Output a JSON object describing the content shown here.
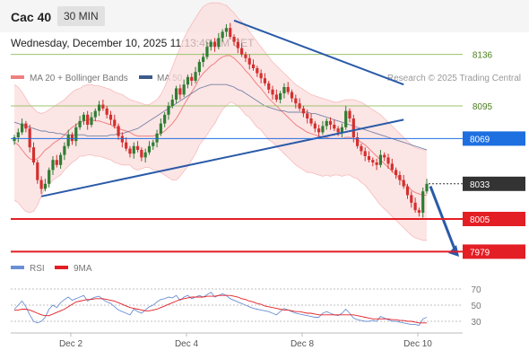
{
  "header": {
    "title": "Cac 40",
    "timeframe": "30 MIN"
  },
  "datetime": "Wednesday, December 10, 2025 11:13:49 AM CET",
  "colors": {
    "bollinger": "#f08080",
    "ma50": "#3d5a8c",
    "support_line": "#2a5aa8",
    "last_price_box": "#333333",
    "resistance": "#9cc36b",
    "red_level": "#e31e24",
    "rsi_line": "#6b8fd4",
    "rsi_ma": "#e31e24",
    "arrow": "#2a5aa8",
    "candle": "#2f7d32",
    "candle_down": "#d32f2f"
  },
  "chart_data": [
    {
      "type": "candlestick",
      "legend": [
        {
          "label": "MA 20 + Bollinger Bands",
          "color": "#f08080"
        },
        {
          "label": "MA 50",
          "color": "#3d5a8c"
        }
      ],
      "watermark": "Research © 2025 Trading Central",
      "x_ticks": [
        "Dec 2",
        "Dec 4",
        "Dec 8",
        "Dec 10"
      ],
      "levels": [
        {
          "value": "8136",
          "style": "green"
        },
        {
          "value": "8095",
          "style": "green"
        },
        {
          "value": "8069",
          "style": "blue"
        },
        {
          "value": "8033",
          "style": "dark",
          "note": "last price"
        },
        {
          "value": "8005",
          "style": "red"
        },
        {
          "value": "7979",
          "style": "red"
        }
      ],
      "trendlines": [
        {
          "from": [
            "Dec 5",
            8163
          ],
          "to": [
            "Dec 9",
            8112
          ]
        },
        {
          "from": [
            "Dec 1",
            8023
          ],
          "to": [
            "Dec 9",
            8084
          ]
        }
      ],
      "closes": [
        8070,
        8074,
        8081,
        8077,
        8062,
        8050,
        8036,
        8029,
        8033,
        8044,
        8052,
        8048,
        8056,
        8063,
        8072,
        8067,
        8078,
        8083,
        8088,
        8080,
        8086,
        8091,
        8096,
        8093,
        8088,
        8084,
        8079,
        8071,
        8066,
        8061,
        8057,
        8063,
        8060,
        8054,
        8058,
        8063,
        8066,
        8073,
        8081,
        8088,
        8095,
        8100,
        8109,
        8104,
        8112,
        8118,
        8115,
        8122,
        8130,
        8134,
        8142,
        8146,
        8142,
        8149,
        8154,
        8157,
        8150,
        8146,
        8141,
        8136,
        8133,
        8128,
        8125,
        8121,
        8117,
        8113,
        8108,
        8104,
        8100,
        8105,
        8110,
        8106,
        8101,
        8097,
        8093,
        8089,
        8085,
        8081,
        8077,
        8074,
        8079,
        8083,
        8080,
        8077,
        8074,
        8078,
        8091,
        8085,
        8070,
        8063,
        8059,
        8055,
        8052,
        8050,
        8048,
        8056,
        8054,
        8049,
        8044,
        8040,
        8036,
        8031,
        8024,
        8018,
        8012,
        8010,
        8027,
        8033
      ],
      "ma20": [
        8066,
        8064,
        8060,
        8056,
        8053,
        8052,
        8053,
        8056,
        8060,
        8062,
        8065,
        8067,
        8069,
        8072,
        8075,
        8078,
        8080,
        8082,
        8083,
        8084,
        8084,
        8083,
        8083,
        8082,
        8081,
        8080,
        8078,
        8077,
        8076,
        8075,
        8074,
        8072,
        8071,
        8071,
        8071,
        8071,
        8071,
        8072,
        8073,
        8075,
        8078,
        8081,
        8085,
        8090,
        8096,
        8101,
        8106,
        8111,
        8117,
        8121,
        8124,
        8127,
        8129,
        8132,
        8134,
        8135,
        8135,
        8133,
        8130,
        8127,
        8123,
        8120,
        8116,
        8112,
        8109,
        8105,
        8101,
        8098,
        8095,
        8092,
        8089,
        8086,
        8083,
        8080,
        8078,
        8076,
        8074,
        8073,
        8072,
        8071,
        8070,
        8070,
        8069,
        8069,
        8069,
        8069,
        8070,
        8070,
        8069,
        8068,
        8066,
        8064,
        8061,
        8058,
        8055,
        8052,
        8049,
        8046,
        8043,
        8040,
        8037,
        8034,
        8031,
        8028,
        8026,
        8025,
        8024,
        8024
      ],
      "ma50": [
        8082,
        8081,
        8080,
        8079,
        8078,
        8077,
        8076,
        8075,
        8075,
        8074,
        8074,
        8073,
        8073,
        8072,
        8072,
        8072,
        8072,
        8072,
        8072,
        8071,
        8071,
        8071,
        8071,
        8071,
        8071,
        8072,
        8072,
        8073,
        8073,
        8074,
        8075,
        8076,
        8077,
        8079,
        8081,
        8083,
        8085,
        8087,
        8089,
        8091,
        8093,
        8095,
        8097,
        8099,
        8101,
        8103,
        8105,
        8107,
        8109,
        8110,
        8111,
        8112,
        8112,
        8112,
        8112,
        8112,
        8111,
        8110,
        8108,
        8107,
        8105,
        8103,
        8101,
        8099,
        8097,
        8095,
        8094,
        8093,
        8092,
        8091,
        8091,
        8090,
        8090,
        8090,
        8090,
        8090,
        8090,
        8089,
        8089,
        8088,
        8087,
        8086,
        8085,
        8084,
        8083,
        8082,
        8081,
        8080,
        8079,
        8078,
        8077,
        8076,
        8075,
        8074,
        8073,
        8072,
        8071,
        8070,
        8069,
        8068,
        8067,
        8066,
        8065,
        8064,
        8063,
        8062,
        8061,
        8060
      ],
      "bb_upper": [
        8112,
        8110,
        8106,
        8101,
        8096,
        8093,
        8090,
        8089,
        8090,
        8092,
        8094,
        8096,
        8098,
        8100,
        8103,
        8106,
        8108,
        8109,
        8111,
        8112,
        8112,
        8111,
        8111,
        8110,
        8109,
        8108,
        8106,
        8105,
        8104,
        8102,
        8100,
        8099,
        8098,
        8097,
        8096,
        8096,
        8098,
        8100,
        8104,
        8110,
        8118,
        8126,
        8134,
        8141,
        8149,
        8155,
        8160,
        8165,
        8170,
        8174,
        8176,
        8177,
        8177,
        8177,
        8176,
        8175,
        8172,
        8169,
        8165,
        8162,
        8158,
        8154,
        8150,
        8146,
        8142,
        8138,
        8134,
        8130,
        8127,
        8124,
        8121,
        8118,
        8115,
        8112,
        8110,
        8108,
        8106,
        8104,
        8103,
        8102,
        8101,
        8100,
        8099,
        8098,
        8098,
        8099,
        8100,
        8100,
        8100,
        8099,
        8098,
        8096,
        8094,
        8092,
        8090,
        8088,
        8085,
        8082,
        8079,
        8076,
        8073,
        8070,
        8067,
        8064,
        8062,
        8061,
        8060,
        8060
      ],
      "bb_lower": [
        8020,
        8018,
        8014,
        8011,
        8010,
        8011,
        8016,
        8023,
        8030,
        8032,
        8036,
        8038,
        8040,
        8044,
        8047,
        8050,
        8052,
        8055,
        8055,
        8056,
        8056,
        8055,
        8055,
        8054,
        8053,
        8052,
        8050,
        8049,
        8048,
        8048,
        8048,
        8045,
        8044,
        8045,
        8046,
        8046,
        8044,
        8044,
        8042,
        8040,
        8038,
        8036,
        8036,
        8039,
        8043,
        8047,
        8052,
        8057,
        8064,
        8068,
        8072,
        8077,
        8081,
        8087,
        8092,
        8095,
        8098,
        8097,
        8095,
        8092,
        8088,
        8086,
        8082,
        8078,
        8076,
        8072,
        8068,
        8066,
        8063,
        8060,
        8057,
        8054,
        8051,
        8048,
        8046,
        8044,
        8042,
        8042,
        8041,
        8040,
        8039,
        8040,
        8039,
        8040,
        8040,
        8039,
        8040,
        8040,
        8038,
        8037,
        8034,
        8032,
        8028,
        8024,
        8020,
        8016,
        8013,
        8010,
        8007,
        8004,
        8001,
        7998,
        7995,
        7992,
        7990,
        7989,
        7988,
        7988
      ]
    },
    {
      "type": "line",
      "legend": [
        {
          "label": "RSI",
          "color": "#6b8fd4"
        },
        {
          "label": "9MA",
          "color": "#e31e24"
        }
      ],
      "y_ticks": [
        "70",
        "50",
        "30"
      ],
      "rsi": [
        45,
        50,
        55,
        48,
        38,
        30,
        28,
        30,
        35,
        45,
        50,
        47,
        53,
        57,
        60,
        56,
        58,
        60,
        62,
        55,
        58,
        60,
        61,
        57,
        54,
        52,
        48,
        44,
        42,
        40,
        38,
        45,
        42,
        40,
        44,
        48,
        50,
        54,
        57,
        58,
        60,
        59,
        62,
        56,
        60,
        62,
        58,
        60,
        62,
        60,
        63,
        66,
        60,
        62,
        64,
        62,
        58,
        56,
        54,
        52,
        50,
        48,
        46,
        45,
        44,
        43,
        42,
        40,
        38,
        42,
        46,
        44,
        42,
        40,
        39,
        38,
        37,
        36,
        35,
        35,
        40,
        42,
        40,
        38,
        37,
        40,
        45,
        40,
        34,
        32,
        31,
        30,
        30,
        31,
        30,
        36,
        34,
        32,
        30,
        30,
        29,
        28,
        27,
        26,
        26,
        25,
        33,
        35
      ],
      "rsi_ma": [
        44,
        44,
        45,
        45,
        44,
        42,
        40,
        38,
        37,
        37,
        39,
        41,
        43,
        45,
        48,
        51,
        54,
        55,
        56,
        57,
        57,
        58,
        58,
        58,
        57,
        56,
        55,
        53,
        51,
        49,
        47,
        46,
        45,
        44,
        43,
        43,
        44,
        45,
        47,
        49,
        51,
        53,
        55,
        57,
        58,
        59,
        60,
        60,
        60,
        60,
        61,
        61,
        61,
        62,
        62,
        62,
        62,
        61,
        60,
        58,
        57,
        55,
        54,
        52,
        51,
        49,
        48,
        47,
        46,
        45,
        44,
        44,
        43,
        42,
        42,
        41,
        40,
        40,
        39,
        38,
        38,
        38,
        38,
        38,
        38,
        38,
        38,
        38,
        38,
        37,
        36,
        35,
        34,
        33,
        33,
        33,
        33,
        33,
        32,
        32,
        31,
        31,
        30,
        30,
        29,
        28,
        28,
        28
      ]
    }
  ]
}
